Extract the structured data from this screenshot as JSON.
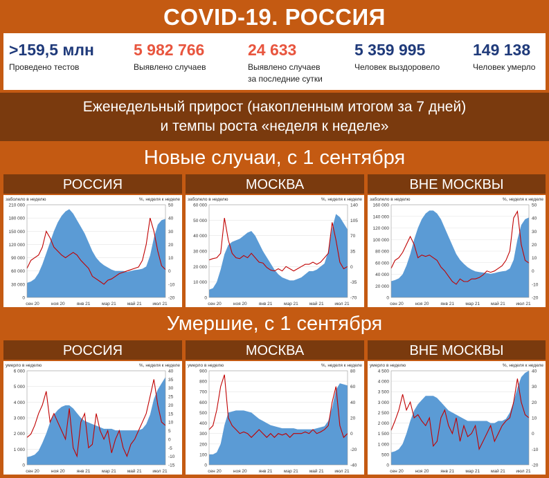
{
  "header": {
    "title": "COVID-19. РОССИЯ"
  },
  "stats": [
    {
      "value": ">159,5 млн",
      "label": [
        "Проведено тестов"
      ],
      "color": "#1f3a7a"
    },
    {
      "value": "5 982 766",
      "label": [
        "Выявлено случаев"
      ],
      "color": "#e8553e"
    },
    {
      "value": "24 633",
      "label": [
        "Выявлено случаев",
        "за последние сутки"
      ],
      "color": "#e8553e"
    },
    {
      "value": "5 359 995",
      "label": [
        "Человек выздоровело"
      ],
      "color": "#1f3a7a"
    },
    {
      "value": "149 138",
      "label": [
        "Человек умерло"
      ],
      "color": "#1f3a7a"
    }
  ],
  "subtitle": {
    "line1": "Еженедельный прирост (накопленным итогом за 7 дней)",
    "line2": "и темпы роста «неделя к неделе»"
  },
  "sections": {
    "cases": "Новые случаи, с 1 сентября",
    "deaths": "Умершие, с 1 сентября"
  },
  "colors": {
    "area": "#5b9bd5",
    "line": "#c00000",
    "orange": "#c45a12",
    "brown": "#7a3a0e"
  },
  "chart_data": [
    {
      "type": "area",
      "panel": "РОССИЯ",
      "section": "cases",
      "left_axis_label": "заболело в неделю",
      "right_axis_label": "%, неделя к неделе",
      "left_ticks": [
        "0",
        "30 000",
        "60 000",
        "90 000",
        "120 000",
        "150 000",
        "180 000",
        "210 000"
      ],
      "left_max": 210000,
      "right_ticks": [
        "-20",
        "-10",
        "0",
        "10",
        "20",
        "30",
        "40",
        "50"
      ],
      "right_min": -20,
      "right_max": 50,
      "x_ticks": [
        "сен 20",
        "ноя 20",
        "янв 21",
        "мар 21",
        "май 21",
        "июл 21"
      ],
      "area_values": [
        33000,
        36000,
        42000,
        55000,
        75000,
        100000,
        125000,
        150000,
        170000,
        185000,
        195000,
        200000,
        190000,
        175000,
        160000,
        145000,
        125000,
        105000,
        90000,
        80000,
        73000,
        68000,
        63000,
        60000,
        60000,
        60000,
        58000,
        60000,
        62000,
        63000,
        65000,
        70000,
        95000,
        135000,
        165000,
        175000,
        178000
      ],
      "line_values": [
        2,
        8,
        10,
        12,
        18,
        30,
        25,
        18,
        15,
        12,
        10,
        12,
        14,
        12,
        8,
        5,
        2,
        -4,
        -6,
        -8,
        -10,
        -7,
        -6,
        -4,
        -2,
        -1,
        0,
        1,
        2,
        3,
        8,
        20,
        40,
        30,
        15,
        4,
        1
      ]
    },
    {
      "type": "area",
      "panel": "МОСКВА",
      "section": "cases",
      "left_axis_label": "заболело в неделю",
      "right_axis_label": "%, неделя к неделе",
      "left_ticks": [
        "0",
        "10 000",
        "20 000",
        "30 000",
        "40 000",
        "50 000",
        "60 000"
      ],
      "left_max": 60000,
      "right_ticks": [
        "-70",
        "-35",
        "0",
        "35",
        "70",
        "105",
        "140"
      ],
      "right_min": -70,
      "right_max": 140,
      "x_ticks": [
        "сен 20",
        "ноя 20",
        "янв 21",
        "мар 21",
        "май 21",
        "июл 21"
      ],
      "area_values": [
        5000,
        6000,
        10000,
        18000,
        28000,
        34000,
        36000,
        37000,
        38000,
        40000,
        42000,
        43000,
        40000,
        35000,
        30000,
        26000,
        22000,
        18000,
        15000,
        13000,
        12000,
        11000,
        11000,
        12000,
        13000,
        15000,
        17000,
        17000,
        18000,
        20000,
        22000,
        30000,
        45000,
        54000,
        52000,
        48000,
        44000
      ],
      "line_values": [
        15,
        18,
        20,
        30,
        110,
        60,
        30,
        20,
        18,
        25,
        20,
        30,
        20,
        10,
        8,
        -2,
        -8,
        -10,
        -5,
        -10,
        0,
        -5,
        -10,
        -5,
        0,
        5,
        5,
        10,
        5,
        10,
        20,
        30,
        100,
        60,
        10,
        -5,
        0
      ]
    },
    {
      "type": "area",
      "panel": "ВНЕ МОСКВЫ",
      "section": "cases",
      "left_axis_label": "заболело в неделю",
      "right_axis_label": "%, неделя к неделе",
      "left_ticks": [
        "0",
        "20 000",
        "40 000",
        "60 000",
        "80 000",
        "100 000",
        "120 000",
        "140 000",
        "160 000"
      ],
      "left_max": 160000,
      "right_ticks": [
        "-20",
        "-10",
        "0",
        "10",
        "20",
        "30",
        "40",
        "50"
      ],
      "right_min": -20,
      "right_max": 50,
      "x_ticks": [
        "сен 20",
        "ноя 20",
        "янв 21",
        "мар 21",
        "май 21",
        "июл 21"
      ],
      "area_values": [
        28000,
        30000,
        33000,
        40000,
        55000,
        75000,
        100000,
        120000,
        135000,
        145000,
        150000,
        150000,
        145000,
        135000,
        120000,
        105000,
        90000,
        75000,
        65000,
        58000,
        52000,
        48000,
        45000,
        44000,
        43000,
        42000,
        41000,
        42000,
        44000,
        45000,
        46000,
        50000,
        65000,
        100000,
        125000,
        135000,
        138000
      ],
      "line_values": [
        2,
        8,
        10,
        14,
        20,
        26,
        20,
        10,
        12,
        11,
        12,
        10,
        8,
        3,
        0,
        -4,
        -8,
        -10,
        -6,
        -8,
        -8,
        -6,
        -6,
        -5,
        -3,
        0,
        -1,
        0,
        2,
        4,
        8,
        15,
        40,
        45,
        20,
        8,
        6
      ]
    },
    {
      "type": "area",
      "panel": "РОССИЯ",
      "section": "deaths",
      "left_axis_label": "умерло в неделю",
      "right_axis_label": "%, неделя к неделе",
      "left_ticks": [
        "0",
        "1 000",
        "2 000",
        "3 000",
        "4 000",
        "5 000",
        "6 000"
      ],
      "left_max": 6000,
      "right_ticks": [
        "-15",
        "-10",
        "-5",
        "0",
        "5",
        "10",
        "15",
        "20",
        "25",
        "30",
        "35",
        "40"
      ],
      "right_min": -15,
      "right_max": 40,
      "x_ticks": [
        "сен 20",
        "ноя 20",
        "янв 21",
        "мар 21",
        "май 21",
        "июл 21"
      ],
      "area_values": [
        500,
        550,
        650,
        900,
        1400,
        2000,
        2700,
        3200,
        3500,
        3700,
        3800,
        3800,
        3600,
        3300,
        3000,
        2800,
        2700,
        2600,
        2500,
        2400,
        2300,
        2300,
        2300,
        2200,
        2200,
        2200,
        2200,
        2200,
        2200,
        2200,
        2300,
        2600,
        3200,
        4200,
        4800,
        5200,
        5600
      ],
      "line_values": [
        1,
        3,
        8,
        15,
        20,
        28,
        10,
        15,
        10,
        5,
        0,
        18,
        -5,
        -10,
        10,
        15,
        -5,
        -3,
        15,
        5,
        0,
        5,
        -8,
        0,
        5,
        -5,
        -10,
        -3,
        0,
        5,
        10,
        15,
        25,
        35,
        20,
        10,
        8
      ]
    },
    {
      "type": "area",
      "panel": "МОСКВА",
      "section": "deaths",
      "left_axis_label": "умерло в неделю",
      "right_axis_label": "%, неделя к неделе",
      "left_ticks": [
        "0",
        "100",
        "200",
        "300",
        "400",
        "500",
        "600",
        "700",
        "800",
        "900"
      ],
      "left_max": 900,
      "right_ticks": [
        "-40",
        "-20",
        "0",
        "20",
        "40",
        "60",
        "80"
      ],
      "right_min": -40,
      "right_max": 80,
      "x_ticks": [
        "сен 20",
        "ноя 20",
        "янв 21",
        "мар 21",
        "май 21",
        "июл 21"
      ],
      "area_values": [
        100,
        100,
        120,
        200,
        380,
        500,
        510,
        520,
        520,
        520,
        510,
        500,
        470,
        440,
        420,
        400,
        380,
        370,
        360,
        350,
        350,
        350,
        350,
        340,
        340,
        340,
        340,
        340,
        350,
        360,
        370,
        420,
        550,
        720,
        780,
        770,
        760
      ],
      "line_values": [
        5,
        10,
        30,
        60,
        75,
        20,
        10,
        5,
        0,
        2,
        0,
        -5,
        0,
        5,
        0,
        -5,
        0,
        -5,
        0,
        -2,
        0,
        -5,
        0,
        0,
        0,
        2,
        0,
        5,
        0,
        2,
        5,
        10,
        40,
        60,
        10,
        -5,
        0
      ]
    },
    {
      "type": "area",
      "panel": "ВНЕ МОСКВЫ",
      "section": "deaths",
      "left_axis_label": "умерло в неделю",
      "right_axis_label": "%, неделя к неделе",
      "left_ticks": [
        "0",
        "500",
        "1 000",
        "1 500",
        "2 000",
        "2 500",
        "3 000",
        "3 500",
        "4 000",
        "4 500"
      ],
      "left_max": 4500,
      "right_ticks": [
        "-20",
        "-10",
        "0",
        "10",
        "20",
        "30",
        "40"
      ],
      "right_min": -20,
      "right_max": 40,
      "x_ticks": [
        "сен 20",
        "ноя 20",
        "янв 21",
        "мар 21",
        "май 21",
        "июл 21"
      ],
      "area_values": [
        600,
        650,
        750,
        1000,
        1500,
        2100,
        2600,
        2900,
        3100,
        3300,
        3300,
        3300,
        3200,
        3000,
        2800,
        2600,
        2500,
        2400,
        2300,
        2200,
        2100,
        2100,
        2100,
        2100,
        2100,
        2100,
        2000,
        2000,
        2100,
        2100,
        2200,
        2500,
        3000,
        3700,
        4200,
        4400,
        4500
      ],
      "line_values": [
        2,
        8,
        15,
        25,
        15,
        20,
        10,
        12,
        8,
        5,
        10,
        -8,
        -5,
        10,
        15,
        5,
        0,
        10,
        -5,
        5,
        -2,
        0,
        5,
        -10,
        -5,
        0,
        5,
        -5,
        0,
        5,
        8,
        10,
        20,
        35,
        20,
        12,
        10
      ]
    }
  ]
}
